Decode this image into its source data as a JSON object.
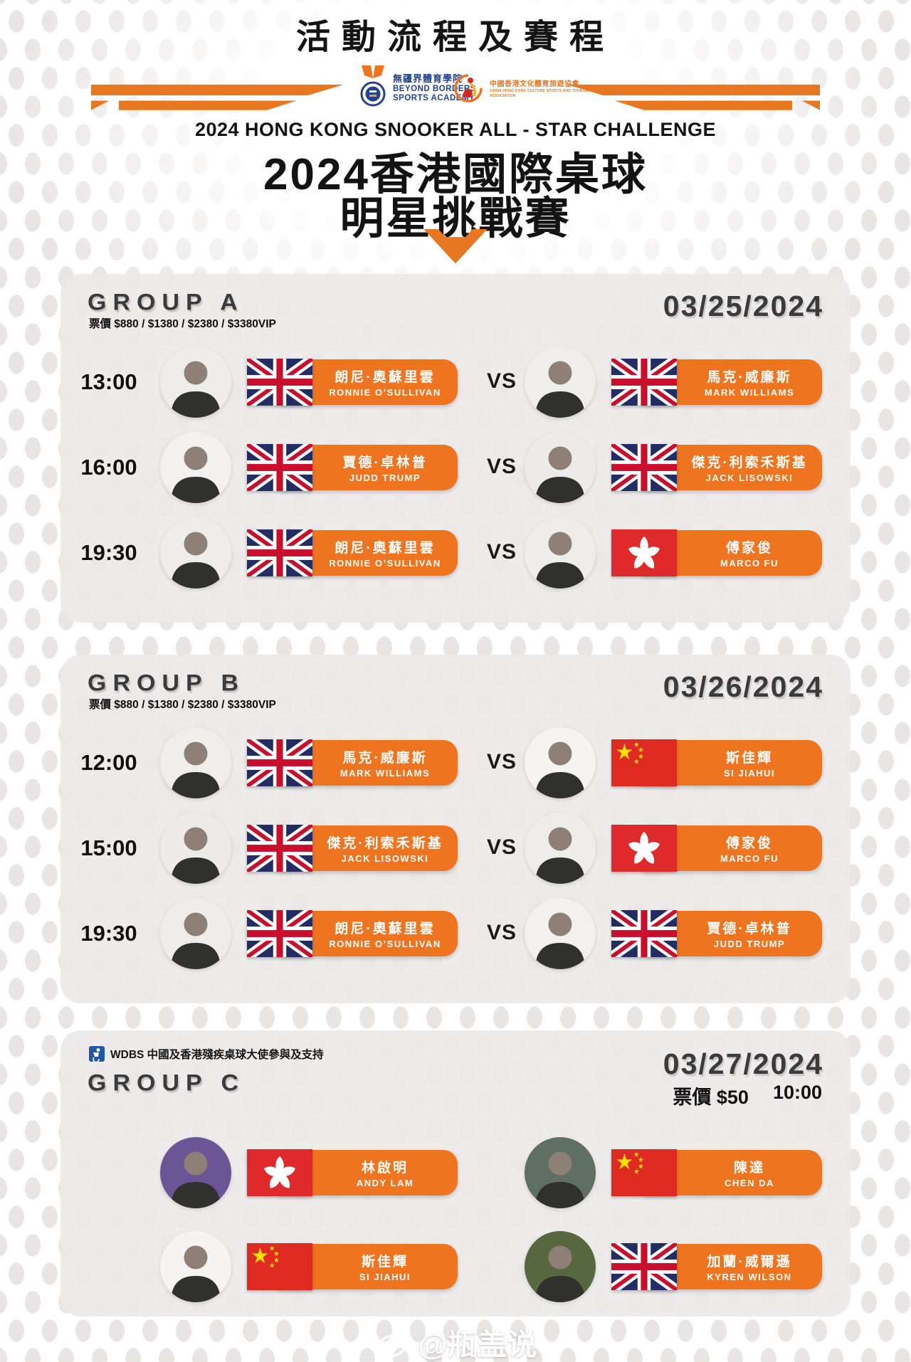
{
  "poster": {
    "title": "活動流程及賽程",
    "logos": {
      "bbsa": {
        "cn": "無疆界體育學院",
        "en1": "BEYOND BORDERS",
        "en2": "SPORTS ACADEMY"
      },
      "chkcsta": {
        "cn": "中國香港文化體育旅遊協會",
        "en": "CHINA HONG KONG CULTURE SPORTS AND TOURISM ASSOCIATION"
      }
    },
    "event_title_en": "2024 HONG KONG SNOOKER ALL - STAR CHALLENGE",
    "event_title_cn_line1": "2024香港國際桌球",
    "event_title_cn_line2": "明星挑戰賽"
  },
  "colors": {
    "orange": "#ee7420",
    "heading_gray": "#3b3b3b",
    "card_bg": "#ebe9e7",
    "uk_navy": "#232c63",
    "uk_red": "#c8102e",
    "hk_red": "#de2a2b",
    "cn_red": "#df2a22",
    "cn_yellow": "#ffde00",
    "wdbs_blue": "#2456a6"
  },
  "vs_label": "VS",
  "groups": [
    {
      "name": "GROUP A",
      "price": "票價 $880 / $1380 / $2380 / $3380VIP",
      "date": "03/25/2024",
      "matches": [
        {
          "time": "13:00",
          "p1": {
            "name_cn": "朗尼·奧蘇里雲",
            "name_en": "RONNIE O’SULLIVAN",
            "flag": "uk",
            "photo_bg": "#efedeb"
          },
          "p2": {
            "name_cn": "馬克·威廉斯",
            "name_en": "MARK WILLIAMS",
            "flag": "uk",
            "photo_bg": "#f0eeec"
          }
        },
        {
          "time": "16:00",
          "p1": {
            "name_cn": "賈德·卓林普",
            "name_en": "JUDD TRUMP",
            "flag": "uk",
            "photo_bg": "#f3f1ef"
          },
          "p2": {
            "name_cn": "傑克·利索禾斯基",
            "name_en": "JACK LISOWSKI",
            "flag": "uk",
            "photo_bg": "#edebe9"
          }
        },
        {
          "time": "19:30",
          "p1": {
            "name_cn": "朗尼·奧蘇里雲",
            "name_en": "RONNIE O’SULLIVAN",
            "flag": "uk",
            "photo_bg": "#efedeb"
          },
          "p2": {
            "name_cn": "傅家俊",
            "name_en": "MARCO FU",
            "flag": "hk",
            "photo_bg": "#efedeb"
          }
        }
      ]
    },
    {
      "name": "GROUP B",
      "price": "票價 $880 / $1380 / $2380 / $3380VIP",
      "date": "03/26/2024",
      "matches": [
        {
          "time": "12:00",
          "p1": {
            "name_cn": "馬克·威廉斯",
            "name_en": "MARK WILLIAMS",
            "flag": "uk",
            "photo_bg": "#f0eeec"
          },
          "p2": {
            "name_cn": "斯佳輝",
            "name_en": "SI JIAHUI",
            "flag": "cn",
            "photo_bg": "#f5f4f2"
          }
        },
        {
          "time": "15:00",
          "p1": {
            "name_cn": "傑克·利索禾斯基",
            "name_en": "JACK LISOWSKI",
            "flag": "uk",
            "photo_bg": "#edebe9"
          },
          "p2": {
            "name_cn": "傅家俊",
            "name_en": "MARCO FU",
            "flag": "hk",
            "photo_bg": "#efedeb"
          }
        },
        {
          "time": "19:30",
          "p1": {
            "name_cn": "朗尼·奧蘇里雲",
            "name_en": "RONNIE O’SULLIVAN",
            "flag": "uk",
            "photo_bg": "#efedeb"
          },
          "p2": {
            "name_cn": "賈德·卓林普",
            "name_en": "JUDD TRUMP",
            "flag": "uk",
            "photo_bg": "#f3f1ef"
          }
        }
      ]
    }
  ],
  "group_c": {
    "name": "GROUP C",
    "wdbs_note": "WDBS 中國及香港殘疾桌球大使參與及支持",
    "date": "03/27/2024",
    "price": "票價 $50",
    "start_time": "10:00",
    "pairs": [
      [
        {
          "name_cn": "林啟明",
          "name_en": "ANDY LAM",
          "flag": "hk",
          "photo_bg": "#6c5594"
        },
        {
          "name_cn": "陳達",
          "name_en": "CHEN DA",
          "flag": "cn",
          "photo_bg": "#5f6f62"
        }
      ],
      [
        {
          "name_cn": "斯佳輝",
          "name_en": "SI JIAHUI",
          "flag": "cn",
          "photo_bg": "#f5f4f2"
        },
        {
          "name_cn": "加蘭·威爾遜",
          "name_en": "KYREN WILSON",
          "flag": "uk",
          "photo_bg": "#57683f"
        }
      ]
    ]
  },
  "watermark": "@瓶盖说"
}
